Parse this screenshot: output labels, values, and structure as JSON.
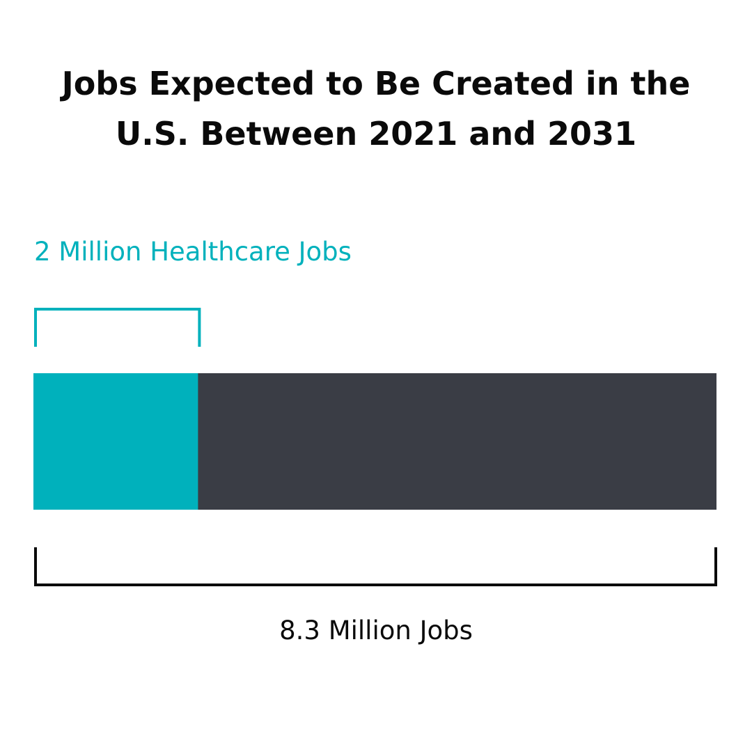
{
  "title_lines": [
    "Jobs Expected to Be Created in the",
    "U.S. Between 2021 and 2031"
  ],
  "chart_data": {
    "type": "bar",
    "orientation": "horizontal-stacked",
    "title": "Jobs Expected to Be Created in the U.S. Between 2021 and 2031",
    "total": {
      "label": "8.3 Million Jobs",
      "value": 8.3
    },
    "segments": [
      {
        "label": "2 Million Healthcare Jobs",
        "value": 2,
        "color": "#00b1bc"
      }
    ],
    "remainder_color": "#3a3d45",
    "bracket_color_total": "#0a0a0a",
    "unit": "Million Jobs"
  }
}
